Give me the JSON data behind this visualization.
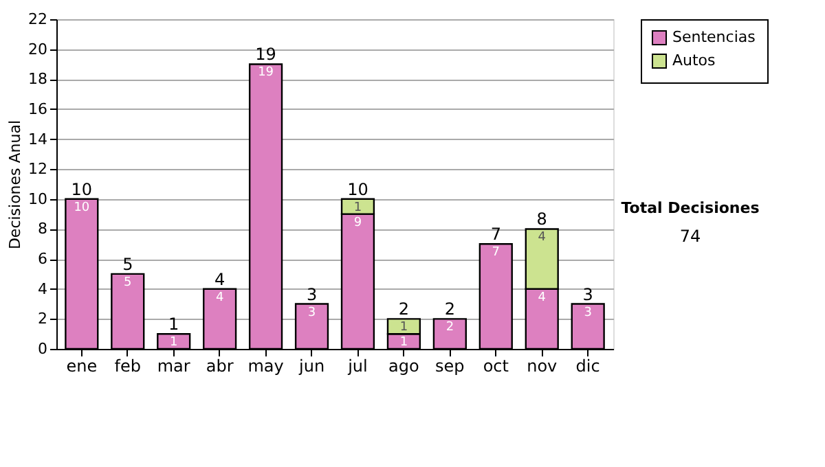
{
  "chart_data": {
    "type": "bar",
    "stacked": true,
    "ylabel": "Decisiones Anual",
    "categories": [
      "ene",
      "feb",
      "mar",
      "abr",
      "may",
      "jun",
      "jul",
      "ago",
      "sep",
      "oct",
      "nov",
      "dic"
    ],
    "series": [
      {
        "name": "Sentencias",
        "color": "#dd80c0",
        "values": [
          10,
          5,
          1,
          4,
          19,
          3,
          9,
          1,
          2,
          7,
          4,
          3
        ],
        "value_labels": [
          "10",
          "5",
          "1",
          "4",
          "19",
          "3",
          "9",
          "1",
          "2",
          "7",
          "4",
          "3"
        ]
      },
      {
        "name": "Autos",
        "color": "#cce390",
        "values": [
          0,
          0,
          0,
          0,
          0,
          0,
          1,
          1,
          0,
          0,
          4,
          0
        ],
        "value_labels": [
          null,
          null,
          null,
          null,
          null,
          null,
          "1",
          "1",
          null,
          null,
          "4",
          null
        ]
      }
    ],
    "totals": [
      "10",
      "5",
      "1",
      "4",
      "19",
      "3",
      "10",
      "2",
      "2",
      "7",
      "8",
      "3"
    ],
    "ylim": [
      0,
      22
    ],
    "yticks": [
      0,
      2,
      4,
      6,
      8,
      10,
      12,
      14,
      16,
      18,
      20,
      22
    ],
    "grid": "y",
    "legend": "right",
    "annotations": [
      "Total Decisiones",
      "74"
    ]
  }
}
